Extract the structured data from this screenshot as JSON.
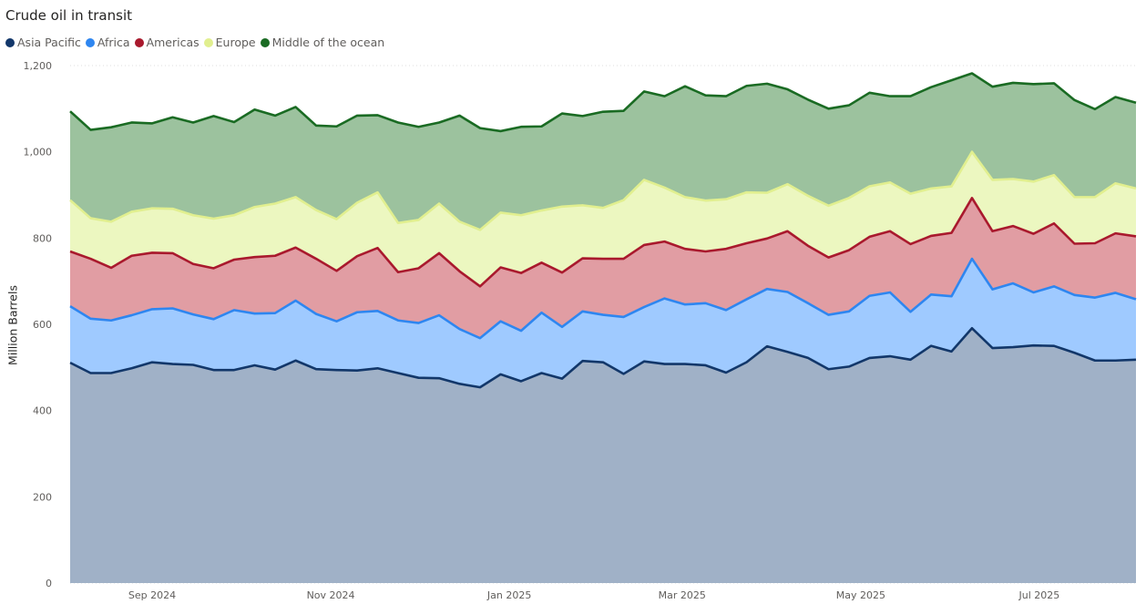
{
  "chart_data": {
    "type": "area",
    "stacked": true,
    "title": "Crude oil in transit",
    "ylabel": "Million Barrels",
    "xlabel": "",
    "ylim": [
      0,
      1200
    ],
    "yticks": [
      0,
      200,
      400,
      600,
      800,
      1000,
      1200
    ],
    "ytick_labels": [
      "0",
      "200",
      "400",
      "600",
      "800",
      "1,000",
      "1,200"
    ],
    "grid": true,
    "legend_position": "top-left",
    "x_start": "2024-08-04",
    "x_step_days": 7,
    "xticks": [
      {
        "label": "Sep 2024",
        "date": "2024-09-01"
      },
      {
        "label": "Nov 2024",
        "date": "2024-11-01"
      },
      {
        "label": "Jan 2025",
        "date": "2025-01-01"
      },
      {
        "label": "Mar 2025",
        "date": "2025-03-01"
      },
      {
        "label": "May 2025",
        "date": "2025-05-01"
      },
      {
        "label": "Jul 2025",
        "date": "2025-07-01"
      }
    ],
    "series": [
      {
        "name": "Asia Pacific",
        "color": "#12376a",
        "fill": "#a0b1c7",
        "values": [
          511,
          487,
          487,
          498,
          512,
          508,
          506,
          494,
          494,
          505,
          495,
          516,
          496,
          494,
          493,
          498,
          487,
          476,
          475,
          462,
          454,
          484,
          468,
          487,
          474,
          515,
          512,
          485,
          514,
          508,
          508,
          505,
          488,
          512,
          549,
          536,
          522,
          496,
          502,
          522,
          526,
          518,
          550,
          537,
          591,
          545,
          547,
          551,
          550,
          534,
          516,
          516,
          518
        ]
      },
      {
        "name": "Africa",
        "color": "#2e86f0",
        "fill": "#9fcaff",
        "values": [
          642,
          613,
          609,
          621,
          635,
          637,
          623,
          612,
          633,
          625,
          626,
          655,
          624,
          607,
          628,
          631,
          609,
          603,
          621,
          589,
          568,
          607,
          585,
          627,
          594,
          630,
          622,
          617,
          640,
          660,
          646,
          649,
          633,
          658,
          682,
          675,
          649,
          622,
          630,
          666,
          674,
          629,
          669,
          665,
          752,
          681,
          695,
          674,
          688,
          668,
          662,
          673,
          658
        ]
      },
      {
        "name": "Americas",
        "color": "#a9192d",
        "fill": "#e19da3",
        "values": [
          769,
          752,
          731,
          759,
          766,
          765,
          740,
          730,
          750,
          756,
          759,
          778,
          752,
          724,
          758,
          777,
          721,
          730,
          765,
          723,
          688,
          732,
          719,
          743,
          720,
          753,
          752,
          752,
          784,
          792,
          775,
          769,
          775,
          788,
          799,
          816,
          782,
          755,
          772,
          803,
          816,
          786,
          805,
          812,
          893,
          816,
          828,
          810,
          834,
          787,
          788,
          811,
          804
        ]
      },
      {
        "name": "Europe",
        "color": "#e1ef8f",
        "fill": "#ecf7c0",
        "values": [
          888,
          846,
          838,
          861,
          869,
          868,
          853,
          845,
          853,
          872,
          880,
          895,
          865,
          844,
          882,
          906,
          835,
          842,
          880,
          838,
          819,
          859,
          853,
          864,
          873,
          876,
          870,
          888,
          935,
          917,
          895,
          887,
          890,
          906,
          905,
          925,
          898,
          875,
          893,
          920,
          929,
          903,
          915,
          920,
          1000,
          935,
          937,
          931,
          946,
          895,
          895,
          927,
          915
        ]
      },
      {
        "name": "Middle of the ocean",
        "color": "#1a6b23",
        "fill": "#9cc29e",
        "values": [
          1094,
          1051,
          1057,
          1068,
          1066,
          1080,
          1068,
          1083,
          1069,
          1098,
          1084,
          1104,
          1061,
          1059,
          1084,
          1085,
          1068,
          1058,
          1068,
          1084,
          1055,
          1048,
          1058,
          1059,
          1089,
          1083,
          1093,
          1095,
          1140,
          1129,
          1152,
          1131,
          1129,
          1153,
          1158,
          1145,
          1121,
          1100,
          1108,
          1137,
          1129,
          1129,
          1150,
          1166,
          1182,
          1151,
          1160,
          1157,
          1159,
          1120,
          1099,
          1127,
          1114
        ]
      }
    ]
  }
}
